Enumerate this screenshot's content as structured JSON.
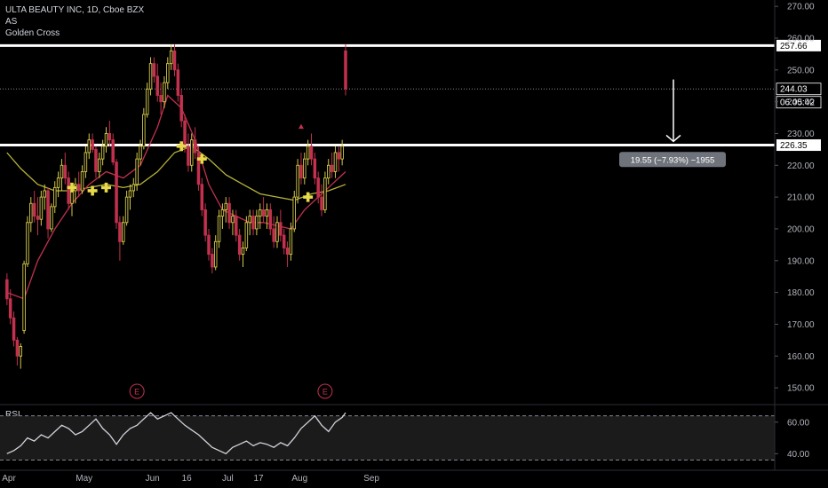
{
  "legend": {
    "symbol_line": "ULTA BEAUTY INC, 1D, Cboe BZX",
    "indicator_1": "AS",
    "indicator_2": "Golden Cross"
  },
  "colors": {
    "background": "#000000",
    "candle_up": "#d4c94a",
    "candle_down": "#c2314e",
    "ma_fast": "#c2314e",
    "ma_slow": "#b8b23a",
    "golden_cross_marker": "#e6d94a",
    "level_line": "#ffffff",
    "rsi_line": "#d1d4dc",
    "earnings_marker": "#c2314e"
  },
  "icons": [
    "golden-cross-plus-icon",
    "earnings-e-icon",
    "down-arrow-icon"
  ],
  "chart_data": [
    {
      "type": "candlestick",
      "symbol": "ULTA BEAUTY INC",
      "interval": "1D",
      "exchange": "Cboe BZX",
      "ylim": [
        145,
        272
      ],
      "y_ticks": [
        150,
        160,
        170,
        180,
        190,
        200,
        210,
        220,
        230,
        240,
        250,
        260,
        270
      ],
      "y_tick_labels": [
        "150.00",
        "160.00",
        "170.00",
        "180.00",
        "190.00",
        "200.00",
        "210.00",
        "220.00",
        "230.00",
        "240.00",
        "250.00",
        "260.00",
        "270.00"
      ],
      "x_tick_labels": [
        "Apr",
        "May",
        "Jun",
        "16",
        "Jul",
        "17",
        "Aug",
        "Sep"
      ],
      "x_tick_bar_index": [
        0,
        22,
        42,
        52,
        64,
        73,
        85,
        106
      ],
      "total_bars": 112,
      "candles": [
        [
          1,
          184,
          186,
          176,
          178
        ],
        [
          2,
          178,
          181,
          170,
          172
        ],
        [
          3,
          172,
          174,
          163,
          165
        ],
        [
          4,
          165,
          166,
          157,
          160
        ],
        [
          5,
          160,
          164,
          156,
          163
        ],
        [
          6,
          168,
          190,
          167,
          189
        ],
        [
          7,
          189,
          204,
          188,
          202
        ],
        [
          8,
          202,
          210,
          199,
          208
        ],
        [
          9,
          208,
          212,
          202,
          204
        ],
        [
          10,
          204,
          210,
          198,
          203
        ],
        [
          11,
          203,
          212,
          201,
          210
        ],
        [
          12,
          210,
          214,
          206,
          212
        ],
        [
          13,
          212,
          213,
          197,
          200
        ],
        [
          14,
          200,
          208,
          199,
          207
        ],
        [
          15,
          207,
          215,
          205,
          213
        ],
        [
          16,
          213,
          218,
          210,
          216
        ],
        [
          17,
          216,
          222,
          212,
          220
        ],
        [
          18,
          220,
          224,
          214,
          216
        ],
        [
          19,
          216,
          218,
          206,
          208
        ],
        [
          20,
          208,
          214,
          204,
          212
        ],
        [
          21,
          212,
          216,
          208,
          214
        ],
        [
          22,
          214,
          218,
          210,
          212
        ],
        [
          23,
          212,
          220,
          211,
          218
        ],
        [
          24,
          218,
          226,
          216,
          224
        ],
        [
          25,
          224,
          230,
          222,
          228
        ],
        [
          26,
          228,
          230,
          224,
          225
        ],
        [
          27,
          225,
          226,
          216,
          218
        ],
        [
          28,
          218,
          224,
          216,
          222
        ],
        [
          29,
          222,
          228,
          220,
          226
        ],
        [
          30,
          226,
          232,
          224,
          230
        ],
        [
          31,
          230,
          234,
          226,
          228
        ],
        [
          32,
          228,
          230,
          220,
          221
        ],
        [
          33,
          221,
          222,
          200,
          202
        ],
        [
          34,
          202,
          204,
          190,
          196
        ],
        [
          35,
          196,
          204,
          195,
          202
        ],
        [
          36,
          202,
          212,
          201,
          210
        ],
        [
          37,
          210,
          214,
          206,
          212
        ],
        [
          38,
          212,
          216,
          210,
          214
        ],
        [
          39,
          214,
          224,
          212,
          222
        ],
        [
          40,
          222,
          228,
          220,
          226
        ],
        [
          41,
          226,
          238,
          225,
          236
        ],
        [
          42,
          236,
          246,
          235,
          244
        ],
        [
          43,
          244,
          254,
          242,
          252
        ],
        [
          44,
          252,
          254,
          246,
          248
        ],
        [
          45,
          248,
          252,
          240,
          242
        ],
        [
          46,
          242,
          246,
          236,
          240
        ],
        [
          47,
          240,
          248,
          238,
          246
        ],
        [
          48,
          246,
          254,
          244,
          252
        ],
        [
          49,
          252,
          258,
          250,
          256
        ],
        [
          50,
          256,
          258,
          248,
          250
        ],
        [
          51,
          250,
          252,
          240,
          242
        ],
        [
          52,
          242,
          244,
          232,
          234
        ],
        [
          53,
          234,
          236,
          224,
          226
        ],
        [
          54,
          226,
          230,
          218,
          220
        ],
        [
          55,
          220,
          230,
          218,
          228
        ],
        [
          56,
          228,
          232,
          222,
          224
        ],
        [
          57,
          224,
          226,
          212,
          214
        ],
        [
          58,
          214,
          216,
          204,
          206
        ],
        [
          59,
          206,
          208,
          196,
          198
        ],
        [
          60,
          198,
          200,
          190,
          192
        ],
        [
          61,
          192,
          194,
          186,
          188
        ],
        [
          62,
          188,
          198,
          187,
          196
        ],
        [
          63,
          196,
          206,
          194,
          204
        ],
        [
          64,
          204,
          208,
          200,
          206
        ],
        [
          65,
          206,
          210,
          202,
          208
        ],
        [
          66,
          208,
          210,
          200,
          202
        ],
        [
          67,
          202,
          206,
          198,
          204
        ],
        [
          68,
          204,
          206,
          196,
          198
        ],
        [
          69,
          198,
          200,
          190,
          192
        ],
        [
          70,
          192,
          196,
          188,
          194
        ],
        [
          71,
          194,
          204,
          193,
          202
        ],
        [
          72,
          202,
          206,
          198,
          204
        ],
        [
          73,
          204,
          206,
          198,
          200
        ],
        [
          74,
          200,
          206,
          198,
          204
        ],
        [
          75,
          204,
          208,
          200,
          206
        ],
        [
          76,
          206,
          210,
          202,
          204
        ],
        [
          77,
          204,
          208,
          200,
          206
        ],
        [
          78,
          206,
          208,
          198,
          200
        ],
        [
          79,
          200,
          204,
          194,
          196
        ],
        [
          80,
          196,
          204,
          194,
          202
        ],
        [
          81,
          202,
          206,
          196,
          198
        ],
        [
          82,
          198,
          200,
          192,
          194
        ],
        [
          83,
          194,
          196,
          188,
          192
        ],
        [
          84,
          192,
          202,
          190,
          200
        ],
        [
          85,
          200,
          212,
          199,
          210
        ],
        [
          86,
          210,
          222,
          208,
          220
        ],
        [
          87,
          220,
          224,
          214,
          216
        ],
        [
          88,
          216,
          224,
          214,
          222
        ],
        [
          89,
          222,
          228,
          220,
          226
        ],
        [
          90,
          226,
          230,
          220,
          222
        ],
        [
          91,
          222,
          224,
          214,
          216
        ],
        [
          92,
          216,
          218,
          208,
          210
        ],
        [
          93,
          210,
          214,
          204,
          206
        ],
        [
          94,
          206,
          218,
          205,
          216
        ],
        [
          95,
          216,
          222,
          214,
          220
        ],
        [
          96,
          220,
          224,
          216,
          218
        ],
        [
          97,
          218,
          226,
          216,
          224
        ],
        [
          98,
          224,
          226,
          218,
          222
        ],
        [
          99,
          222,
          228,
          220,
          226
        ],
        [
          100,
          256,
          258,
          242,
          244
        ]
      ],
      "candles_columns": [
        "bar_index",
        "open",
        "high",
        "low",
        "close"
      ],
      "ma_fast": [
        [
          1,
          180
        ],
        [
          6,
          178
        ],
        [
          10,
          190
        ],
        [
          15,
          200
        ],
        [
          20,
          208
        ],
        [
          25,
          214
        ],
        [
          30,
          218
        ],
        [
          35,
          216
        ],
        [
          40,
          220
        ],
        [
          45,
          232
        ],
        [
          48,
          242
        ],
        [
          52,
          238
        ],
        [
          56,
          228
        ],
        [
          60,
          214
        ],
        [
          64,
          206
        ],
        [
          68,
          204
        ],
        [
          72,
          202
        ],
        [
          76,
          202
        ],
        [
          80,
          201
        ],
        [
          84,
          200
        ],
        [
          88,
          206
        ],
        [
          92,
          210
        ],
        [
          96,
          214
        ],
        [
          100,
          218
        ]
      ],
      "ma_slow": [
        [
          1,
          224
        ],
        [
          5,
          219
        ],
        [
          10,
          214
        ],
        [
          15,
          212
        ],
        [
          20,
          212
        ],
        [
          25,
          213
        ],
        [
          30,
          214
        ],
        [
          35,
          213
        ],
        [
          40,
          214
        ],
        [
          45,
          218
        ],
        [
          50,
          224
        ],
        [
          55,
          226
        ],
        [
          60,
          222
        ],
        [
          65,
          217
        ],
        [
          70,
          214
        ],
        [
          75,
          211
        ],
        [
          80,
          210
        ],
        [
          85,
          209
        ],
        [
          90,
          211
        ],
        [
          95,
          212
        ],
        [
          100,
          214
        ]
      ],
      "golden_cross_markers": [
        [
          20,
          213
        ],
        [
          26,
          212
        ],
        [
          30,
          213
        ],
        [
          52,
          226
        ],
        [
          58,
          222
        ],
        [
          89,
          210
        ]
      ],
      "earnings_markers": [
        39,
        94
      ],
      "horizontal_levels": [
        {
          "value": 257.66,
          "label": "257.66",
          "style": "solid"
        },
        {
          "value": 226.35,
          "label": "226.35",
          "style": "solid"
        },
        {
          "value": 244.03,
          "label": "244.03",
          "style": "dotted"
        }
      ],
      "countdown_label": "06:05:42",
      "measure_tooltip": "19.55 (−7.93%) −1955"
    },
    {
      "type": "line",
      "title": "RSI",
      "ylim": [
        34,
        70
      ],
      "y_ticks": [
        40,
        60
      ],
      "y_tick_labels": [
        "40.00",
        "60.00"
      ],
      "bands": [
        36,
        64
      ],
      "series": [
        {
          "name": "RSI",
          "values": [
            [
              1,
              40
            ],
            [
              3,
              42
            ],
            [
              5,
              45
            ],
            [
              7,
              50
            ],
            [
              9,
              48
            ],
            [
              11,
              52
            ],
            [
              13,
              50
            ],
            [
              15,
              54
            ],
            [
              17,
              58
            ],
            [
              19,
              56
            ],
            [
              21,
              52
            ],
            [
              23,
              54
            ],
            [
              25,
              58
            ],
            [
              27,
              62
            ],
            [
              29,
              56
            ],
            [
              31,
              52
            ],
            [
              33,
              46
            ],
            [
              35,
              52
            ],
            [
              37,
              56
            ],
            [
              39,
              58
            ],
            [
              41,
              62
            ],
            [
              43,
              66
            ],
            [
              45,
              62
            ],
            [
              47,
              64
            ],
            [
              49,
              66
            ],
            [
              51,
              62
            ],
            [
              53,
              58
            ],
            [
              55,
              55
            ],
            [
              57,
              52
            ],
            [
              59,
              48
            ],
            [
              61,
              44
            ],
            [
              63,
              42
            ],
            [
              65,
              40
            ],
            [
              67,
              44
            ],
            [
              69,
              46
            ],
            [
              71,
              48
            ],
            [
              73,
              45
            ],
            [
              75,
              47
            ],
            [
              77,
              46
            ],
            [
              79,
              44
            ],
            [
              81,
              47
            ],
            [
              83,
              45
            ],
            [
              85,
              50
            ],
            [
              87,
              56
            ],
            [
              89,
              60
            ],
            [
              91,
              64
            ],
            [
              93,
              58
            ],
            [
              95,
              54
            ],
            [
              97,
              60
            ],
            [
              99,
              63
            ],
            [
              100,
              66
            ]
          ]
        }
      ]
    }
  ]
}
